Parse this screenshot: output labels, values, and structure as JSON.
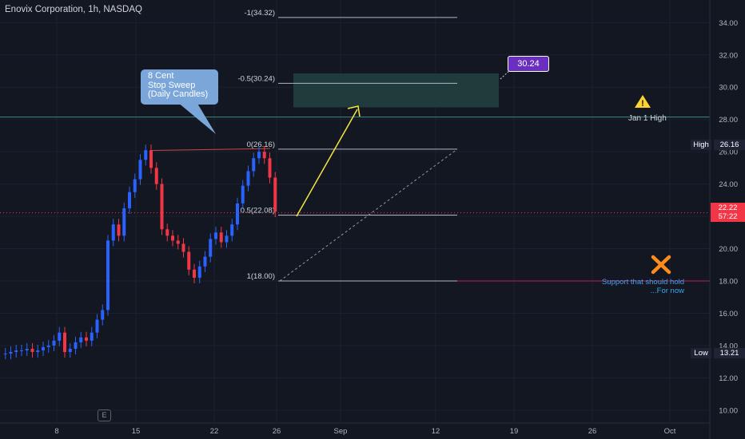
{
  "header": {
    "title": "Enovix Corporation, 1h, NASDAQ"
  },
  "annotations": {
    "callout_lines": [
      "8 Cent",
      "Stop Sweep",
      "(Daily Candles)"
    ],
    "target_badge": "30.24",
    "jan1_high_label": "Jan 1 High",
    "support_lines": [
      "Support that should hold",
      "...For now"
    ],
    "exchange_badge": "E",
    "warning_icon": "warning-triangle-icon",
    "x_mark_icon": "orange-x-icon"
  },
  "price_scale": {
    "high_label": "High",
    "high_value": "26.16",
    "low_label": "Low",
    "low_value": "13.21",
    "last_price": "22.22",
    "countdown": "57:22"
  },
  "colors": {
    "background": "#131722",
    "up": "#2962ff",
    "down": "#f23645",
    "arrow": "#f5e642",
    "zone": "#1f3b3c",
    "jan1_line": "#3a8c80",
    "support_line": "#c2185b",
    "callout": "#7aa6d9",
    "target_badge": "#6b2fbf",
    "x_mark": "#ff8c1a",
    "warning": "#ffd22e"
  },
  "chart_data": {
    "type": "candlestick",
    "title": "Enovix Corporation, 1h, NASDAQ",
    "ylim": [
      9.2,
      35.4
    ],
    "y_ticks": [
      10,
      12,
      14,
      16,
      18,
      20,
      22,
      24,
      26,
      28,
      30,
      32,
      34
    ],
    "y_tick_labels": [
      "10.00",
      "12.00",
      "14.00",
      "16.00",
      "18.00",
      "20.00",
      "22.00",
      "24.00",
      "26.00",
      "28.00",
      "30.00",
      "32.00",
      "34.00"
    ],
    "x_ticks": [
      "8",
      "15",
      "22",
      "26",
      "Sep",
      "12",
      "19",
      "26",
      "Oct"
    ],
    "fibonacci": [
      {
        "label": "-1(34.32)",
        "price": 34.32
      },
      {
        "label": "-0.5(30.24)",
        "price": 30.24
      },
      {
        "label": "0(26.16)",
        "price": 26.16
      },
      {
        "label": "0.5(22.08)",
        "price": 22.08
      },
      {
        "label": "1(18.00)",
        "price": 18.0
      }
    ],
    "jan1_high": 28.15,
    "support_level": 18.0,
    "target_zone": [
      28.75,
      30.85
    ],
    "last_price": 22.22,
    "series_points": [
      [
        0,
        13.5
      ],
      [
        1,
        13.5
      ],
      [
        2,
        13.6
      ],
      [
        3,
        13.7
      ],
      [
        4,
        13.7
      ],
      [
        5,
        13.8
      ],
      [
        6,
        13.6
      ],
      [
        7,
        13.7
      ],
      [
        8,
        13.9
      ],
      [
        9,
        14.0
      ],
      [
        10,
        14.3
      ],
      [
        11,
        14.8
      ],
      [
        12,
        13.6
      ],
      [
        13,
        13.8
      ],
      [
        14,
        14.2
      ],
      [
        15,
        14.5
      ],
      [
        16,
        14.3
      ],
      [
        17,
        14.8
      ],
      [
        18,
        15.6
      ],
      [
        19,
        16.2
      ],
      [
        20,
        20.5
      ],
      [
        21,
        21.5
      ],
      [
        22,
        20.8
      ],
      [
        23,
        22.5
      ],
      [
        24,
        23.5
      ],
      [
        25,
        24.3
      ],
      [
        26,
        25.5
      ],
      [
        27,
        26.1
      ],
      [
        28,
        25.0
      ],
      [
        29,
        24.0
      ],
      [
        30,
        21.2
      ],
      [
        31,
        20.8
      ],
      [
        32,
        20.5
      ],
      [
        33,
        20.3
      ],
      [
        34,
        19.8
      ],
      [
        35,
        18.7
      ],
      [
        36,
        18.2
      ],
      [
        37,
        18.9
      ],
      [
        38,
        19.5
      ],
      [
        39,
        20.6
      ],
      [
        40,
        21.0
      ],
      [
        41,
        20.4
      ],
      [
        42,
        20.8
      ],
      [
        43,
        21.5
      ],
      [
        44,
        22.8
      ],
      [
        45,
        23.9
      ],
      [
        46,
        24.8
      ],
      [
        47,
        25.6
      ],
      [
        48,
        26.0
      ],
      [
        49,
        25.6
      ],
      [
        50,
        24.4
      ],
      [
        51,
        22.3
      ]
    ]
  }
}
